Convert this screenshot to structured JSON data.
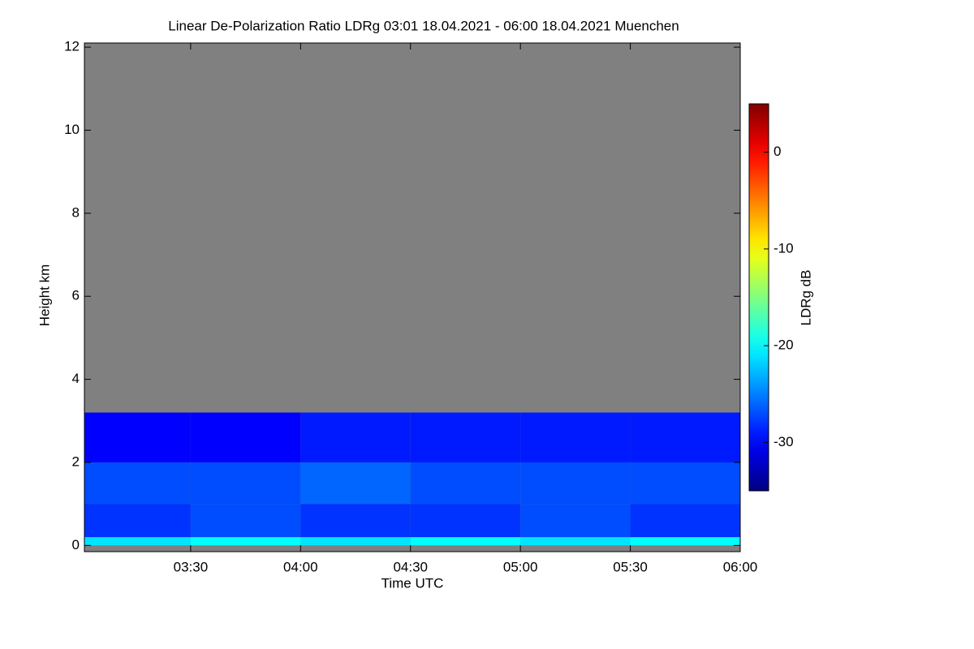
{
  "chart_data": {
    "type": "heatmap",
    "title": "Linear De-Polarization Ratio LDRg   03:01 18.04.2021 - 06:00 18.04.2021 Muenchen",
    "x_label": "Time UTC",
    "y_label": "Height km",
    "colorbar_label": "LDRg dB",
    "colormap": "jet",
    "missing_color": "#808080",
    "xlim": [
      3.0167,
      6.0
    ],
    "xticks": [
      {
        "value": 3.5,
        "label": "03:30"
      },
      {
        "value": 4.0,
        "label": "04:00"
      },
      {
        "value": 4.5,
        "label": "04:30"
      },
      {
        "value": 5.0,
        "label": "05:00"
      },
      {
        "value": 5.5,
        "label": "05:30"
      },
      {
        "value": 6.0,
        "label": "06:00"
      }
    ],
    "ylim": [
      -0.15,
      12.1
    ],
    "yticks": [
      0,
      2,
      4,
      6,
      8,
      10,
      12
    ],
    "clim": [
      -35,
      5
    ],
    "cticks": [
      0,
      -10,
      -20,
      -30
    ],
    "x_bins": [
      3.0167,
      3.5,
      4.0,
      4.5,
      5.0,
      5.5,
      6.0
    ],
    "y_bins": [
      0,
      0.2,
      1,
      2,
      3.2
    ],
    "values": [
      [
        -21,
        -20,
        -21,
        -20,
        -21,
        -20
      ],
      [
        -28,
        -27,
        -28,
        -28,
        -27,
        -28
      ],
      [
        -27,
        -27,
        -26,
        -27,
        -27,
        -27
      ],
      [
        -30,
        -30,
        -29,
        -29,
        -29,
        -29
      ]
    ]
  }
}
